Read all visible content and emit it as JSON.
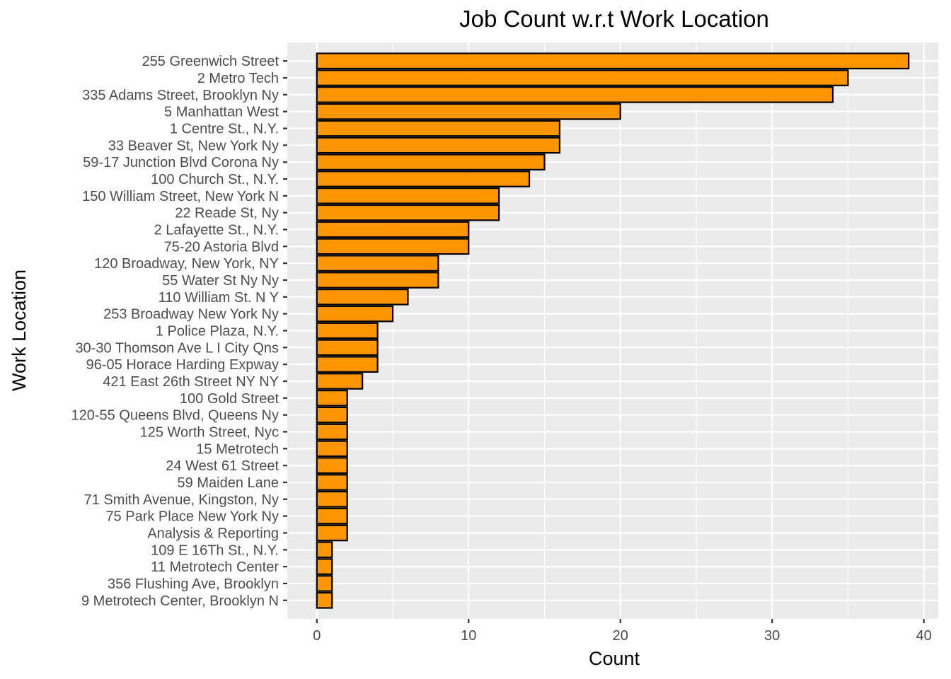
{
  "chart_data": {
    "type": "bar",
    "orientation": "horizontal",
    "title": "Job Count w.r.t Work Location",
    "xlabel": "Count",
    "ylabel": "Work Location",
    "xlim": [
      -1.95,
      40.95
    ],
    "xticks": [
      0,
      10,
      20,
      30,
      40
    ],
    "grid": true,
    "legend": "none",
    "categories": [
      "255 Greenwich Street",
      "2 Metro Tech",
      "335 Adams Street, Brooklyn Ny",
      "5 Manhattan West",
      "1 Centre St., N.Y.",
      "33 Beaver St, New York Ny",
      "59-17 Junction Blvd Corona Ny",
      "100 Church St., N.Y.",
      "150 William Street, New York N",
      "22 Reade St, Ny",
      "2 Lafayette St., N.Y.",
      "75-20 Astoria Blvd",
      "120 Broadway, New York, NY",
      "55 Water St Ny Ny",
      "110 William St. N Y",
      "253 Broadway New York Ny",
      "1 Police Plaza, N.Y.",
      "30-30 Thomson Ave L I City Qns",
      "96-05 Horace Harding Expway",
      "421 East 26th Street NY NY",
      "100 Gold Street",
      "120-55 Queens Blvd, Queens Ny",
      "125 Worth Street, Nyc",
      "15 Metrotech",
      "24 West 61 Street",
      "59 Maiden Lane",
      "71 Smith Avenue, Kingston, Ny",
      "75 Park Place New York Ny",
      "Analysis & Reporting",
      "109 E 16Th St., N.Y.",
      "11 Metrotech Center",
      "356 Flushing Ave, Brooklyn",
      "9 Metrotech Center, Brooklyn N"
    ],
    "values": [
      39,
      35,
      34,
      20,
      16,
      16,
      15,
      14,
      12,
      12,
      10,
      10,
      8,
      8,
      6,
      5,
      4,
      4,
      4,
      3,
      2,
      2,
      2,
      2,
      2,
      2,
      2,
      2,
      2,
      1,
      1,
      1,
      1
    ]
  },
  "colors": {
    "bar_fill": "#FF9500",
    "bar_outline": "#000000",
    "panel_background": "#EBEBEB",
    "grid": "#FFFFFF"
  }
}
